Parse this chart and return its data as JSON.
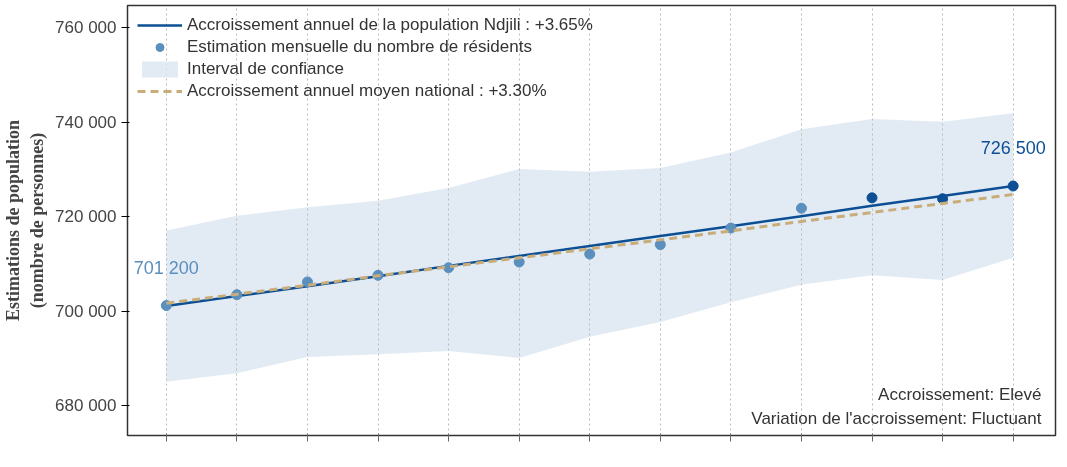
{
  "chart_data": {
    "type": "scatter",
    "ylabel": "Estimations de population\n(nombre de personnes)",
    "categories": [
      null,
      null,
      null,
      null,
      null,
      null,
      null,
      null,
      null,
      null,
      null,
      null,
      null
    ],
    "series": [
      {
        "type": "line",
        "name": "Accroissement annuel de la population Ndjili : +3.65%",
        "color": "#0d4f94",
        "line_style": "solid",
        "values": [
          701100,
          703200,
          705300,
          707400,
          709600,
          711700,
          713800,
          715900,
          718000,
          720100,
          722300,
          724400,
          726500
        ]
      },
      {
        "name": "Estimation mensuelle du nombre de résidents",
        "color": "#0d4f94",
        "marker": "circle",
        "colors": [
          "#5b8fbd",
          "#5b8fbd",
          "#5b8fbd",
          "#5b8fbd",
          "#5b8fbd",
          "#5b8fbd",
          "#5b8fbd",
          "#5b8fbd",
          "#5b8fbd",
          "#5b8fbd",
          "#0d4f94",
          "#0d4f94",
          "#0d4f94"
        ],
        "values": [
          701200,
          703500,
          706200,
          707600,
          709200,
          710400,
          712100,
          714100,
          717600,
          721800,
          724000,
          723800,
          726500
        ],
        "value_labels": [
          "701 200",
          null,
          null,
          null,
          null,
          null,
          null,
          null,
          null,
          null,
          null,
          null,
          "726 500"
        ]
      },
      {
        "type": "line",
        "name": "Interval de confiance",
        "color": "#dbe6f1",
        "values": [
          null,
          null,
          null,
          null,
          null,
          null,
          null,
          null,
          null,
          null,
          null,
          null,
          null
        ],
        "lower": [
          685100,
          686900,
          690300,
          690900,
          691600,
          690100,
          694600,
          697700,
          701900,
          705600,
          707600,
          706600,
          711300
        ],
        "upper": [
          717100,
          720200,
          722000,
          723400,
          726100,
          730100,
          729500,
          730300,
          733600,
          738500,
          740700,
          740100,
          741900
        ]
      },
      {
        "type": "line",
        "name": "Accroissement annuel moyen national : +3.30%",
        "color": "#c8ad7a",
        "line_style": "dashed",
        "values": [
          701700,
          703600,
          705500,
          707500,
          709400,
          711300,
          713200,
          715100,
          717000,
          719000,
          720900,
          722800,
          724700
        ]
      }
    ],
    "ylim": [
      673700,
      764700
    ],
    "yticks": [
      {
        "value": 680000,
        "label": "680 000"
      },
      {
        "value": 700000,
        "label": "700 000"
      },
      {
        "value": 720000,
        "label": "720 000"
      },
      {
        "value": 740000,
        "label": "740 000"
      },
      {
        "value": 760000,
        "label": "760 000"
      }
    ],
    "grid": "x",
    "legend": "top left",
    "annotations": [
      "Accroissement: Elevé",
      "Variation de l'accroissement: Fluctuant"
    ]
  }
}
